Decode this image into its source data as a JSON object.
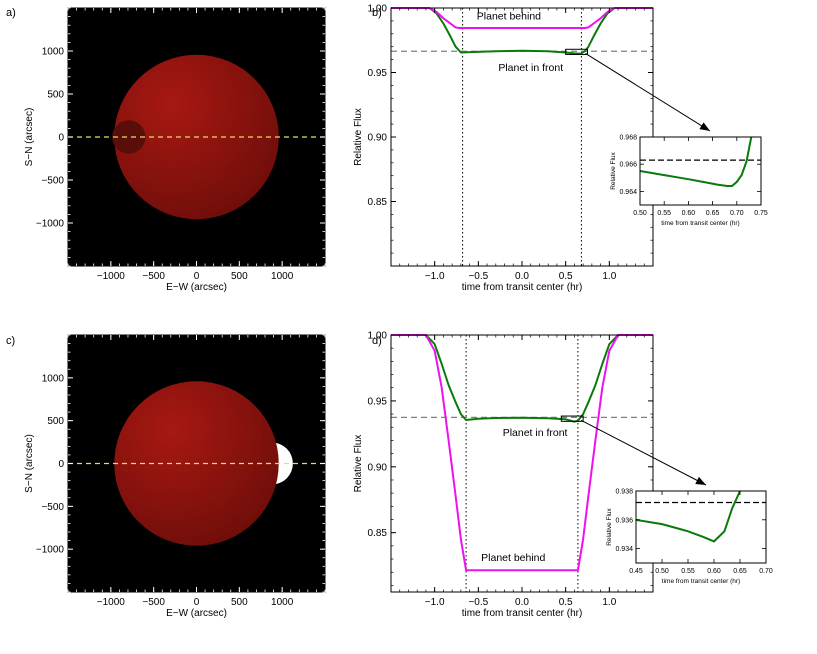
{
  "panel_labels": {
    "a": "a)",
    "b": "b)",
    "c": "c)",
    "d": "d)"
  },
  "colors": {
    "background": "#000000",
    "star_light": "#a01610",
    "star_dark": "#6e0e0a",
    "planet_behind_a": "#5a0e0a",
    "planet_c": "#ffffff",
    "equator_line": "#e8e05a",
    "curve_front": "#0a7a0a",
    "curve_behind": "#ee10ee",
    "reference_dash": "#808080",
    "callout": "#000000"
  },
  "chart_data": [
    {
      "id": "a",
      "type": "image",
      "xlabel": "E−W (arcsec)",
      "ylabel": "S−N (arcsec)",
      "xlim": [
        -1500,
        1500
      ],
      "ylim": [
        -1500,
        1500
      ],
      "xticks": [
        -1000,
        -500,
        0,
        500,
        1000
      ],
      "xtick_labels": [
        "−1000",
        "−500",
        "0",
        "500",
        "1000"
      ],
      "yticks": [
        -1000,
        -500,
        0,
        500,
        1000
      ],
      "ytick_labels": [
        "−1000",
        "−500",
        "0",
        "500",
        "1000"
      ],
      "star": {
        "x": 0,
        "y": 0,
        "r": 960
      },
      "planet": {
        "x": -790,
        "y": 0,
        "r": 195,
        "side": "behind"
      },
      "equator_y": 0
    },
    {
      "id": "b",
      "type": "line",
      "xlabel": "time from transit center (hr)",
      "ylabel": "Relative Flux",
      "xlim": [
        -1.5,
        1.5
      ],
      "ylim": [
        0.8,
        1.0
      ],
      "xticks": [
        -1.0,
        -0.5,
        0.0,
        0.5,
        1.0
      ],
      "xtick_labels": [
        "−1.0",
        "−0.5",
        "0.0",
        "0.5",
        "1.0"
      ],
      "yticks": [
        0.85,
        0.9,
        0.95,
        1.0
      ],
      "ytick_labels": [
        "0.85",
        "0.90",
        "0.95",
        "1.00"
      ],
      "reference_y": 0.9665,
      "vlines": [
        -0.68,
        0.68
      ],
      "series": [
        {
          "name": "Planet in front",
          "color_key": "curve_front",
          "x": [
            -1.5,
            -1.06,
            -0.98,
            -0.9,
            -0.82,
            -0.76,
            -0.7,
            -0.6,
            -0.3,
            0.0,
            0.3,
            0.5,
            0.6,
            0.67,
            0.72,
            0.76,
            0.82,
            0.9,
            0.98,
            1.06,
            1.5
          ],
          "y": [
            1.0,
            1.0,
            0.996,
            0.988,
            0.978,
            0.97,
            0.9655,
            0.9658,
            0.9665,
            0.9668,
            0.9665,
            0.9655,
            0.9648,
            0.9645,
            0.9665,
            0.97,
            0.978,
            0.988,
            0.996,
            1.0,
            1.0
          ]
        },
        {
          "name": "Planet behind",
          "color_key": "curve_behind",
          "x": [
            -1.5,
            -1.06,
            -0.98,
            -0.9,
            -0.82,
            -0.76,
            -0.72,
            0.72,
            0.76,
            0.82,
            0.9,
            0.98,
            1.06,
            1.5
          ],
          "y": [
            1.0,
            1.0,
            0.997,
            0.992,
            0.988,
            0.985,
            0.9845,
            0.9845,
            0.985,
            0.988,
            0.992,
            0.997,
            1.0,
            1.0
          ]
        }
      ],
      "annotations": [
        {
          "text": "Planet behind",
          "x": -0.15,
          "y": 0.991,
          "color_key": "curve_behind"
        },
        {
          "text": "Planet in front",
          "x": 0.1,
          "y": 0.951,
          "color_key": "curve_front"
        }
      ],
      "zoom_box": {
        "x": [
          0.5,
          0.75
        ],
        "y": [
          0.964,
          0.968
        ]
      },
      "inset": {
        "xlabel": "time from transit center (hr)",
        "ylabel": "Relative Flux",
        "xlim": [
          0.5,
          0.75
        ],
        "ylim": [
          0.963,
          0.968
        ],
        "xticks": [
          0.5,
          0.55,
          0.6,
          0.65,
          0.7,
          0.75
        ],
        "xtick_labels": [
          "0.50",
          "0.55",
          "0.60",
          "0.65",
          "0.70",
          "0.75"
        ],
        "yticks": [
          0.964,
          0.966,
          0.968
        ],
        "ytick_labels": [
          "0.964",
          "0.966",
          "0.968"
        ],
        "reference_y": 0.9663,
        "series": {
          "x": [
            0.5,
            0.55,
            0.6,
            0.63,
            0.66,
            0.68,
            0.69,
            0.7,
            0.71,
            0.72,
            0.73
          ],
          "y": [
            0.9655,
            0.9652,
            0.9649,
            0.9647,
            0.9645,
            0.9644,
            0.9644,
            0.9647,
            0.9652,
            0.9662,
            0.968
          ]
        }
      }
    },
    {
      "id": "c",
      "type": "image",
      "xlabel": "E−W (arcsec)",
      "ylabel": "S−N (arcsec)",
      "xlim": [
        -1500,
        1500
      ],
      "ylim": [
        -1500,
        1500
      ],
      "xticks": [
        -1000,
        -500,
        0,
        500,
        1000
      ],
      "xtick_labels": [
        "−1000",
        "−500",
        "0",
        "500",
        "1000"
      ],
      "yticks": [
        -1000,
        -500,
        0,
        500,
        1000
      ],
      "ytick_labels": [
        "−1000",
        "−500",
        "0",
        "500",
        "1000"
      ],
      "star": {
        "x": 0,
        "y": 0,
        "r": 960
      },
      "planet": {
        "x": 880,
        "y": 0,
        "r": 245,
        "side": "behind"
      },
      "equator_y": 0
    },
    {
      "id": "d",
      "type": "line",
      "xlabel": "time from transit center (hr)",
      "ylabel": "Relative Flux",
      "xlim": [
        -1.5,
        1.5
      ],
      "ylim": [
        0.805,
        1.0
      ],
      "xticks": [
        -1.0,
        -0.5,
        0.0,
        0.5,
        1.0
      ],
      "xtick_labels": [
        "−1.0",
        "−0.5",
        "0.0",
        "0.5",
        "1.0"
      ],
      "yticks": [
        0.85,
        0.9,
        0.95,
        1.0
      ],
      "ytick_labels": [
        "0.85",
        "0.90",
        "0.95",
        "1.00"
      ],
      "reference_y": 0.9375,
      "vlines": [
        -0.64,
        0.64
      ],
      "series": [
        {
          "name": "Planet in front",
          "color_key": "curve_front",
          "x": [
            -1.5,
            -1.1,
            -1.0,
            -0.92,
            -0.84,
            -0.76,
            -0.7,
            -0.64,
            -0.5,
            -0.3,
            0.0,
            0.3,
            0.5,
            0.6,
            0.64,
            0.7,
            0.76,
            0.84,
            0.92,
            1.0,
            1.1,
            1.5
          ],
          "y": [
            1.0,
            1.0,
            0.993,
            0.978,
            0.962,
            0.949,
            0.94,
            0.9355,
            0.9365,
            0.937,
            0.9372,
            0.9368,
            0.936,
            0.9342,
            0.935,
            0.94,
            0.949,
            0.962,
            0.978,
            0.993,
            1.0,
            1.0
          ]
        },
        {
          "name": "Planet behind",
          "color_key": "curve_behind",
          "x": [
            -1.5,
            -1.1,
            -1.0,
            -0.92,
            -0.84,
            -0.76,
            -0.7,
            -0.64,
            0.64,
            0.7,
            0.76,
            0.84,
            0.92,
            1.0,
            1.1,
            1.5
          ],
          "y": [
            1.0,
            1.0,
            0.988,
            0.96,
            0.92,
            0.878,
            0.845,
            0.8215,
            0.8215,
            0.845,
            0.878,
            0.92,
            0.96,
            0.988,
            1.0,
            1.0
          ]
        }
      ],
      "annotations": [
        {
          "text": "Planet in front",
          "x": 0.15,
          "y": 0.9235,
          "color_key": "curve_front"
        },
        {
          "text": "Planet behind",
          "x": -0.1,
          "y": 0.8285,
          "color_key": "curve_behind"
        }
      ],
      "zoom_box": {
        "x": [
          0.45,
          0.7
        ],
        "y": [
          0.9345,
          0.9385
        ]
      },
      "inset": {
        "xlabel": "time from transit center (hr)",
        "ylabel": "Relative Flux",
        "xlim": [
          0.45,
          0.7
        ],
        "ylim": [
          0.933,
          0.938
        ],
        "xticks": [
          0.45,
          0.5,
          0.55,
          0.6,
          0.65,
          0.7
        ],
        "xtick_labels": [
          "0.45",
          "0.50",
          "0.55",
          "0.60",
          "0.65",
          "0.70"
        ],
        "yticks": [
          0.934,
          0.936,
          0.938
        ],
        "ytick_labels": [
          "0.934",
          "0.936",
          "0.938"
        ],
        "reference_y": 0.9372,
        "series": {
          "x": [
            0.45,
            0.5,
            0.53,
            0.55,
            0.58,
            0.6,
            0.62,
            0.635,
            0.65
          ],
          "y": [
            0.936,
            0.9357,
            0.9354,
            0.9352,
            0.9348,
            0.9345,
            0.9352,
            0.9368,
            0.938
          ]
        }
      }
    }
  ]
}
